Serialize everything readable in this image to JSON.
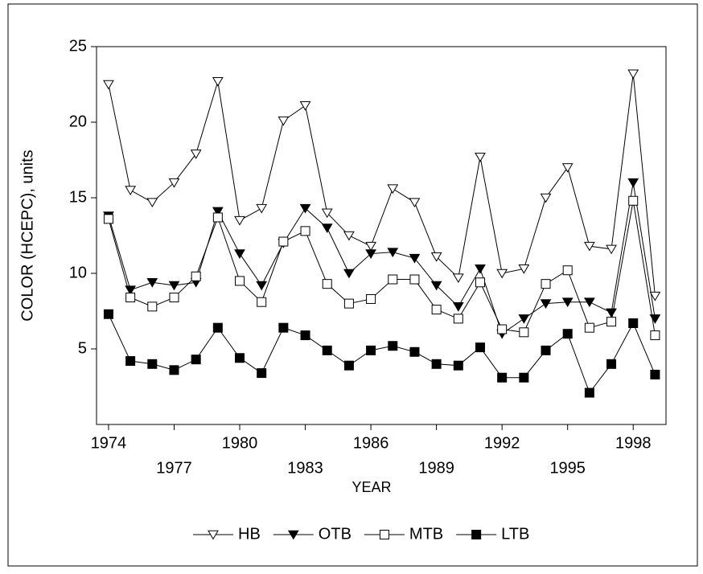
{
  "chart_data": {
    "type": "line",
    "x_label": "YEAR",
    "y_label": "COLOR (HCEPC), units",
    "x": [
      1974,
      1975,
      1976,
      1977,
      1978,
      1979,
      1980,
      1981,
      1982,
      1983,
      1984,
      1985,
      1986,
      1987,
      1988,
      1989,
      1990,
      1991,
      1992,
      1993,
      1994,
      1995,
      1996,
      1997,
      1998,
      1999
    ],
    "series": [
      {
        "name": "HB",
        "color": "#000000",
        "marker": "triangle-down-open",
        "values": [
          22.5,
          15.5,
          14.7,
          16.0,
          17.9,
          22.7,
          13.5,
          14.3,
          20.1,
          21.1,
          14.0,
          12.5,
          11.8,
          15.6,
          14.7,
          11.1,
          9.7,
          17.7,
          10.0,
          10.3,
          15.0,
          17.0,
          11.8,
          11.6,
          23.2,
          8.5
        ]
      },
      {
        "name": "OTB",
        "color": "#000000",
        "marker": "triangle-down-filled",
        "values": [
          13.8,
          8.9,
          9.4,
          9.2,
          9.4,
          14.1,
          11.3,
          9.2,
          12.0,
          14.3,
          13.0,
          10.0,
          11.3,
          11.4,
          11.0,
          9.2,
          7.8,
          10.3,
          6.0,
          7.0,
          8.0,
          8.1,
          8.1,
          7.4,
          16.0,
          7.0
        ]
      },
      {
        "name": "MTB",
        "color": "#000000",
        "marker": "square-open",
        "values": [
          13.6,
          8.4,
          7.8,
          8.4,
          9.8,
          13.7,
          9.5,
          8.1,
          12.1,
          12.8,
          9.3,
          8.0,
          8.3,
          9.6,
          9.6,
          7.6,
          7.0,
          9.4,
          6.3,
          6.1,
          9.3,
          10.2,
          6.4,
          6.8,
          14.8,
          5.9
        ]
      },
      {
        "name": "LTB",
        "color": "#000000",
        "marker": "square-filled",
        "values": [
          7.3,
          4.2,
          4.0,
          3.6,
          4.3,
          6.4,
          4.4,
          3.4,
          6.4,
          5.9,
          4.9,
          3.9,
          4.9,
          5.2,
          4.8,
          4.0,
          3.9,
          5.1,
          3.1,
          3.1,
          4.9,
          6.0,
          2.1,
          4.0,
          6.7,
          3.3
        ]
      }
    ],
    "xlim": [
      1973.45,
      1999.5
    ],
    "xticks": [
      1974,
      1977,
      1980,
      1983,
      1986,
      1989,
      1992,
      1995,
      1998
    ],
    "ylim": [
      0,
      25
    ],
    "yticks": [
      5,
      10,
      15,
      20,
      25
    ],
    "grid": false,
    "legend": "bottom"
  }
}
